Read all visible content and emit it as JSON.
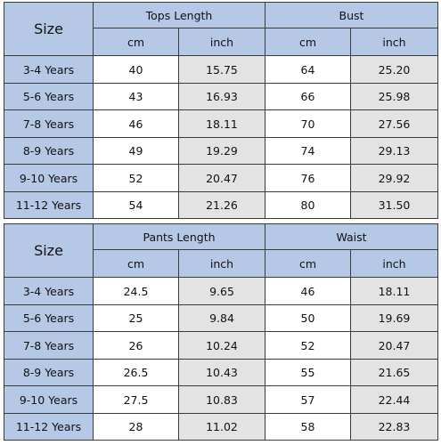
{
  "tables": [
    {
      "size_header": "Size",
      "groups": [
        {
          "title": "Tops Length",
          "units": [
            "cm",
            "inch"
          ]
        },
        {
          "title": "Bust",
          "units": [
            "cm",
            "inch"
          ]
        }
      ],
      "rows": [
        [
          "3-4 Years",
          "40",
          "15.75",
          "64",
          "25.20"
        ],
        [
          "5-6 Years",
          "43",
          "16.93",
          "66",
          "25.98"
        ],
        [
          "7-8 Years",
          "46",
          "18.11",
          "70",
          "27.56"
        ],
        [
          "8-9 Years",
          "49",
          "19.29",
          "74",
          "29.13"
        ],
        [
          "9-10 Years",
          "52",
          "20.47",
          "76",
          "29.92"
        ],
        [
          "11-12 Years",
          "54",
          "21.26",
          "80",
          "31.50"
        ]
      ]
    },
    {
      "size_header": "Size",
      "groups": [
        {
          "title": "Pants Length",
          "units": [
            "cm",
            "inch"
          ]
        },
        {
          "title": "Waist",
          "units": [
            "cm",
            "inch"
          ]
        }
      ],
      "rows": [
        [
          "3-4 Years",
          "24.5",
          "9.65",
          "46",
          "18.11"
        ],
        [
          "5-6 Years",
          "25",
          "9.84",
          "50",
          "19.69"
        ],
        [
          "7-8 Years",
          "26",
          "10.24",
          "52",
          "20.47"
        ],
        [
          "8-9 Years",
          "26.5",
          "10.43",
          "55",
          "21.65"
        ],
        [
          "9-10 Years",
          "27.5",
          "10.83",
          "57",
          "22.44"
        ],
        [
          "11-12 Years",
          "28",
          "11.02",
          "58",
          "22.83"
        ]
      ]
    }
  ]
}
